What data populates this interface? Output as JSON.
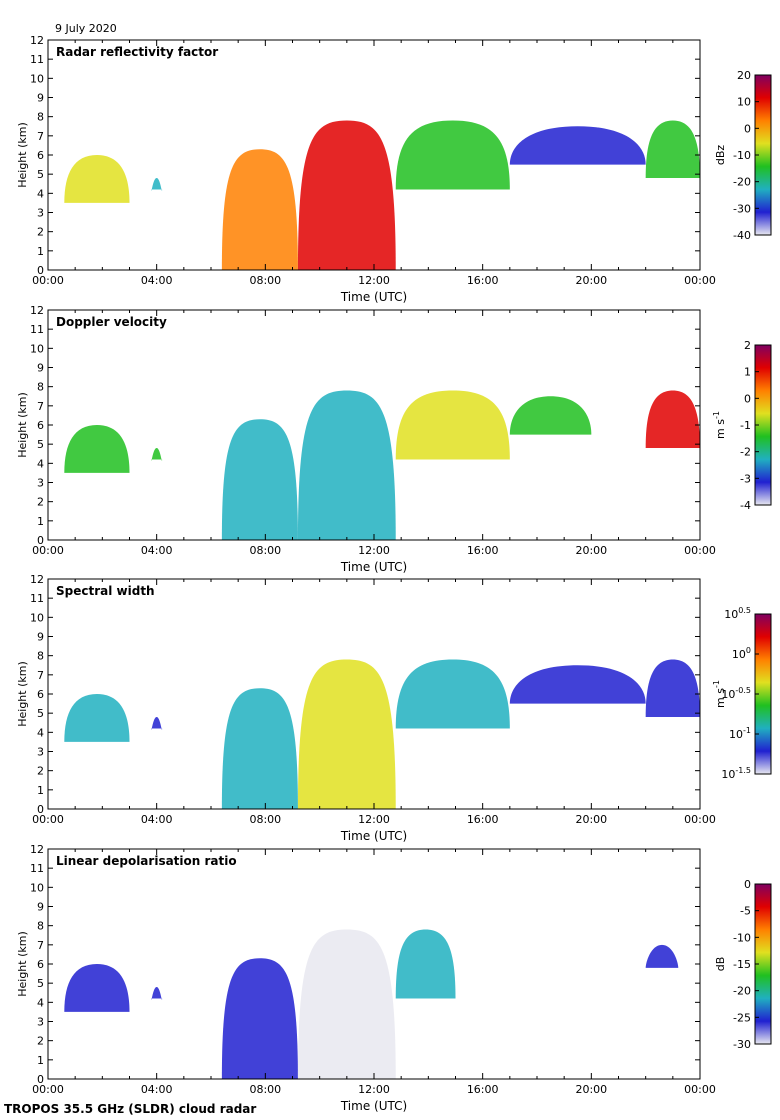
{
  "date_label": "9 July 2020",
  "footer_label": "TROPOS 35.5 GHz (SLDR) cloud radar",
  "chart_data": [
    {
      "type": "heatmap",
      "title": "Radar reflectivity factor",
      "xlabel": "Time (UTC)",
      "ylabel": "Height (km)",
      "x_ticks": [
        "00:00",
        "04:00",
        "08:00",
        "12:00",
        "16:00",
        "20:00",
        "00:00"
      ],
      "xlim": [
        0,
        24
      ],
      "ylim": [
        0,
        12
      ],
      "y_ticks": [
        0,
        1,
        2,
        3,
        4,
        5,
        6,
        7,
        8,
        9,
        10,
        11,
        12
      ],
      "colorbar": {
        "label": "dBz",
        "range": [
          -40,
          20
        ],
        "ticks": [
          "20",
          "10",
          "0",
          "-10",
          "-20",
          "-30",
          "-40"
        ],
        "colors": [
          "#e8e8f0",
          "#2020d0",
          "#20b0c0",
          "#20c020",
          "#e0e020",
          "#ff8000",
          "#e00000",
          "#800060"
        ]
      },
      "features": [
        {
          "t0": 0.6,
          "t1": 3.0,
          "base": 3.5,
          "top": 6.0,
          "value": -8
        },
        {
          "t0": 3.8,
          "t1": 4.2,
          "base": 4.2,
          "top": 4.8,
          "value": -20
        },
        {
          "t0": 6.4,
          "t1": 9.2,
          "base": 0.0,
          "top": 6.3,
          "value": 0
        },
        {
          "t0": 9.2,
          "t1": 12.8,
          "base": 0.0,
          "top": 7.8,
          "value": 8
        },
        {
          "t0": 12.8,
          "t1": 17.0,
          "base": 4.2,
          "top": 7.8,
          "value": -15
        },
        {
          "t0": 17.0,
          "t1": 22.0,
          "base": 5.5,
          "top": 7.5,
          "value": -32
        },
        {
          "t0": 22.0,
          "t1": 24.0,
          "base": 4.8,
          "top": 7.8,
          "value": -15
        }
      ]
    },
    {
      "type": "heatmap",
      "title": "Doppler velocity",
      "xlabel": "Time (UTC)",
      "ylabel": "Height (km)",
      "x_ticks": [
        "00:00",
        "04:00",
        "08:00",
        "12:00",
        "16:00",
        "20:00",
        "00:00"
      ],
      "xlim": [
        0,
        24
      ],
      "ylim": [
        0,
        12
      ],
      "y_ticks": [
        0,
        1,
        2,
        3,
        4,
        5,
        6,
        7,
        8,
        9,
        10,
        11,
        12
      ],
      "colorbar": {
        "label": "m s-1",
        "range": [
          -4,
          2
        ],
        "ticks": [
          "2",
          "1",
          "0",
          "-1",
          "-2",
          "-3",
          "-4"
        ],
        "colors": [
          "#e8e8f0",
          "#2020d0",
          "#20b0c0",
          "#20c020",
          "#e0e020",
          "#ff8000",
          "#e00000",
          "#800060"
        ]
      },
      "features": [
        {
          "t0": 0.6,
          "t1": 3.0,
          "base": 3.5,
          "top": 6.0,
          "value": -1.5
        },
        {
          "t0": 3.8,
          "t1": 4.2,
          "base": 4.2,
          "top": 4.8,
          "value": -1.5
        },
        {
          "t0": 6.4,
          "t1": 9.2,
          "base": 0.0,
          "top": 6.3,
          "value": -2.0
        },
        {
          "t0": 9.2,
          "t1": 12.8,
          "base": 0.0,
          "top": 7.8,
          "value": -2.2
        },
        {
          "t0": 12.8,
          "t1": 17.0,
          "base": 4.2,
          "top": 7.8,
          "value": -1.0
        },
        {
          "t0": 17.0,
          "t1": 20.0,
          "base": 5.5,
          "top": 7.5,
          "value": -1.2
        },
        {
          "t0": 22.0,
          "t1": 24.0,
          "base": 4.8,
          "top": 7.8,
          "value": 0.5
        }
      ]
    },
    {
      "type": "heatmap",
      "title": "Spectral width",
      "xlabel": "Time (UTC)",
      "ylabel": "Height (km)",
      "x_ticks": [
        "00:00",
        "04:00",
        "08:00",
        "12:00",
        "16:00",
        "20:00",
        "00:00"
      ],
      "xlim": [
        0,
        24
      ],
      "ylim": [
        0,
        12
      ],
      "y_ticks": [
        0,
        1,
        2,
        3,
        4,
        5,
        6,
        7,
        8,
        9,
        10,
        11,
        12
      ],
      "colorbar": {
        "label": "m s-1",
        "range": [
          -1.5,
          0.5
        ],
        "ticks": [
          "10^0.5",
          "10^0",
          "10^-0.5",
          "10^-1",
          "10^-1.5"
        ],
        "colors": [
          "#e8e8f0",
          "#2020d0",
          "#20b0c0",
          "#20c020",
          "#e0e020",
          "#ff8000",
          "#e00000",
          "#800060"
        ]
      },
      "features": [
        {
          "t0": 0.6,
          "t1": 3.0,
          "base": 3.5,
          "top": 6.0,
          "value": -0.8
        },
        {
          "t0": 3.8,
          "t1": 4.2,
          "base": 4.2,
          "top": 4.8,
          "value": -1.1
        },
        {
          "t0": 6.4,
          "t1": 9.2,
          "base": 0.0,
          "top": 6.3,
          "value": -0.8
        },
        {
          "t0": 9.2,
          "t1": 12.8,
          "base": 0.0,
          "top": 7.8,
          "value": -0.5
        },
        {
          "t0": 12.8,
          "t1": 17.0,
          "base": 4.2,
          "top": 7.8,
          "value": -0.9
        },
        {
          "t0": 17.0,
          "t1": 22.0,
          "base": 5.5,
          "top": 7.5,
          "value": -1.2
        },
        {
          "t0": 22.0,
          "t1": 24.0,
          "base": 4.8,
          "top": 7.8,
          "value": -1.1
        }
      ]
    },
    {
      "type": "heatmap",
      "title": "Linear depolarisation ratio",
      "xlabel": "Time (UTC)",
      "ylabel": "Height (km)",
      "x_ticks": [
        "00:00",
        "04:00",
        "08:00",
        "12:00",
        "16:00",
        "20:00",
        "00:00"
      ],
      "xlim": [
        0,
        24
      ],
      "ylim": [
        0,
        12
      ],
      "y_ticks": [
        0,
        1,
        2,
        3,
        4,
        5,
        6,
        7,
        8,
        9,
        10,
        11,
        12
      ],
      "colorbar": {
        "label": "dB",
        "range": [
          -30,
          0
        ],
        "ticks": [
          "0",
          "-5",
          "-10",
          "-15",
          "-20",
          "-25",
          "-30"
        ],
        "colors": [
          "#e8e8f0",
          "#2020d0",
          "#20b0c0",
          "#20c020",
          "#e0e020",
          "#ff8000",
          "#e00000",
          "#800060"
        ]
      },
      "features": [
        {
          "t0": 0.6,
          "t1": 3.0,
          "base": 3.5,
          "top": 6.0,
          "value": -25
        },
        {
          "t0": 3.8,
          "t1": 4.2,
          "base": 4.2,
          "top": 4.8,
          "value": -24
        },
        {
          "t0": 6.4,
          "t1": 9.2,
          "base": 0.0,
          "top": 6.3,
          "value": -26
        },
        {
          "t0": 9.2,
          "t1": 12.8,
          "base": 0.0,
          "top": 7.8,
          "value": -27
        },
        {
          "t0": 12.8,
          "t1": 15.0,
          "base": 4.2,
          "top": 7.8,
          "value": -22
        },
        {
          "t0": 22.0,
          "t1": 23.2,
          "base": 5.8,
          "top": 7.0,
          "value": -24
        }
      ]
    }
  ]
}
